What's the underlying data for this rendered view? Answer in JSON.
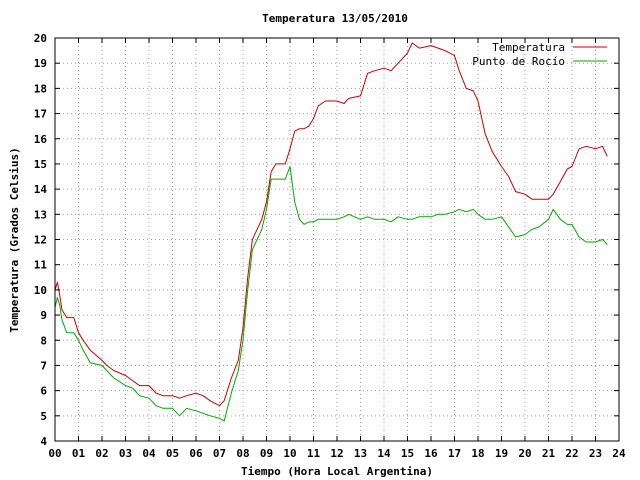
{
  "chart_data": {
    "type": "line",
    "title": "Temperatura 13/05/2010",
    "xlabel": "Tiempo (Hora Local Argentina)",
    "ylabel": "Temperatura (Grados Celsius)",
    "xlim": [
      0,
      24
    ],
    "ylim": [
      4,
      20
    ],
    "xticks": [
      "00",
      "01",
      "02",
      "03",
      "04",
      "05",
      "06",
      "07",
      "08",
      "09",
      "10",
      "11",
      "12",
      "13",
      "14",
      "15",
      "16",
      "17",
      "18",
      "19",
      "20",
      "21",
      "22",
      "23",
      "24"
    ],
    "yticks": [
      "4",
      "5",
      "6",
      "7",
      "8",
      "9",
      "10",
      "11",
      "12",
      "13",
      "14",
      "15",
      "16",
      "17",
      "18",
      "19",
      "20"
    ],
    "grid": true,
    "legend_position": "top-right",
    "series": [
      {
        "name": "Temperatura",
        "color": "#cc0000",
        "x": [
          0.0,
          0.1,
          0.2,
          0.3,
          0.5,
          0.8,
          1.0,
          1.2,
          1.5,
          2.0,
          2.2,
          2.5,
          3.0,
          3.3,
          3.6,
          4.0,
          4.3,
          4.6,
          5.0,
          5.3,
          5.6,
          6.0,
          6.3,
          6.6,
          7.0,
          7.2,
          7.5,
          7.8,
          8.0,
          8.2,
          8.4,
          8.6,
          8.8,
          9.0,
          9.2,
          9.4,
          9.6,
          9.8,
          10.0,
          10.2,
          10.4,
          10.6,
          10.8,
          11.0,
          11.2,
          11.5,
          12.0,
          12.3,
          12.5,
          13.0,
          13.3,
          13.6,
          14.0,
          14.3,
          14.6,
          15.0,
          15.2,
          15.5,
          16.0,
          16.3,
          16.6,
          17.0,
          17.2,
          17.5,
          17.8,
          18.0,
          18.3,
          18.6,
          19.0,
          19.3,
          19.6,
          20.0,
          20.3,
          20.6,
          21.0,
          21.2,
          21.5,
          21.8,
          22.0,
          22.3,
          22.6,
          23.0,
          23.3,
          23.5
        ],
        "values": [
          10.0,
          10.3,
          9.8,
          9.2,
          8.9,
          8.9,
          8.3,
          8.0,
          7.6,
          7.2,
          7.0,
          6.8,
          6.6,
          6.4,
          6.2,
          6.2,
          5.9,
          5.8,
          5.8,
          5.7,
          5.8,
          5.9,
          5.8,
          5.6,
          5.4,
          5.6,
          6.5,
          7.2,
          8.5,
          10.5,
          12.0,
          12.4,
          12.8,
          13.5,
          14.7,
          15.0,
          15.0,
          15.0,
          15.6,
          16.3,
          16.4,
          16.4,
          16.5,
          16.8,
          17.3,
          17.5,
          17.5,
          17.4,
          17.6,
          17.7,
          18.6,
          18.7,
          18.8,
          18.7,
          19.0,
          19.4,
          19.8,
          19.6,
          19.7,
          19.6,
          19.5,
          19.3,
          18.7,
          18.0,
          17.9,
          17.5,
          16.2,
          15.5,
          14.9,
          14.5,
          13.9,
          13.8,
          13.6,
          13.6,
          13.6,
          13.8,
          14.3,
          14.8,
          14.9,
          15.6,
          15.7,
          15.6,
          15.7,
          15.3
        ]
      },
      {
        "name": "Punto de Rocío",
        "color": "#00aa00",
        "x": [
          0.0,
          0.1,
          0.2,
          0.3,
          0.5,
          0.8,
          1.0,
          1.2,
          1.5,
          2.0,
          2.2,
          2.5,
          3.0,
          3.3,
          3.6,
          4.0,
          4.3,
          4.6,
          5.0,
          5.3,
          5.6,
          6.0,
          6.3,
          6.6,
          7.0,
          7.2,
          7.5,
          7.8,
          8.0,
          8.2,
          8.4,
          8.6,
          8.8,
          9.0,
          9.2,
          9.4,
          9.6,
          9.8,
          10.0,
          10.2,
          10.4,
          10.6,
          10.8,
          11.0,
          11.2,
          11.5,
          12.0,
          12.3,
          12.5,
          13.0,
          13.3,
          13.6,
          14.0,
          14.3,
          14.6,
          15.0,
          15.2,
          15.5,
          16.0,
          16.3,
          16.6,
          17.0,
          17.2,
          17.5,
          17.8,
          18.0,
          18.3,
          18.6,
          19.0,
          19.3,
          19.6,
          20.0,
          20.3,
          20.6,
          21.0,
          21.2,
          21.5,
          21.8,
          22.0,
          22.3,
          22.6,
          23.0,
          23.3,
          23.5
        ],
        "values": [
          9.3,
          9.7,
          9.4,
          8.8,
          8.3,
          8.3,
          8.0,
          7.6,
          7.1,
          7.0,
          6.8,
          6.5,
          6.2,
          6.1,
          5.8,
          5.7,
          5.4,
          5.3,
          5.3,
          5.0,
          5.3,
          5.2,
          5.1,
          5.0,
          4.9,
          4.8,
          5.9,
          6.8,
          8.0,
          10.0,
          11.6,
          12.0,
          12.4,
          13.2,
          14.4,
          14.4,
          14.4,
          14.4,
          14.9,
          13.5,
          12.8,
          12.6,
          12.7,
          12.7,
          12.8,
          12.8,
          12.8,
          12.9,
          13.0,
          12.8,
          12.9,
          12.8,
          12.8,
          12.7,
          12.9,
          12.8,
          12.8,
          12.9,
          12.9,
          13.0,
          13.0,
          13.1,
          13.2,
          13.1,
          13.2,
          13.0,
          12.8,
          12.8,
          12.9,
          12.5,
          12.1,
          12.2,
          12.4,
          12.5,
          12.8,
          13.2,
          12.8,
          12.6,
          12.6,
          12.1,
          11.9,
          11.9,
          12.0,
          11.8
        ]
      }
    ]
  }
}
